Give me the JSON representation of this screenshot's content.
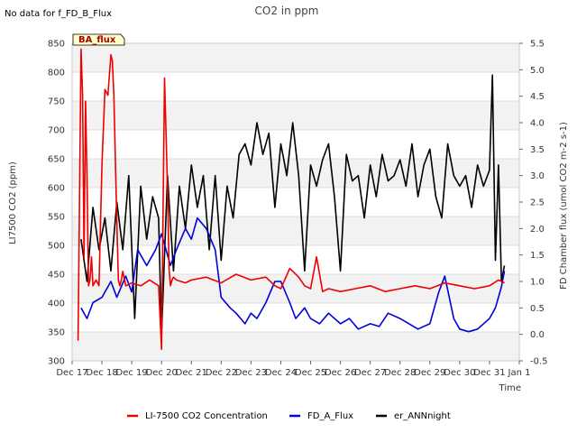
{
  "note": "No data for f_FD_B_Flux",
  "badge": "BA_flux",
  "chart_data": {
    "type": "line",
    "title": "CO2 in ppm",
    "xlabel": "Time",
    "ylabel": "LI7500 CO2 (ppm)",
    "y2label": "FD Chamber flux (umol CO2 m-2 s-1)",
    "ylim": [
      300,
      850
    ],
    "y2lim": [
      -0.5,
      5.5
    ],
    "xlim": [
      0,
      15
    ],
    "x_tick_labels": [
      "Dec 17",
      "Dec 18",
      "Dec 19",
      "Dec 20",
      "Dec 21",
      "Dec 22",
      "Dec 23",
      "Dec 24",
      "Dec 25",
      "Dec 26",
      "Dec 27",
      "Dec 28",
      "Dec 29",
      "Dec 30",
      "Dec 31",
      "Jan 1"
    ],
    "y_tick_labels": [
      "300",
      "350",
      "400",
      "450",
      "500",
      "550",
      "600",
      "650",
      "700",
      "750",
      "800",
      "850"
    ],
    "y2_tick_labels": [
      "-0.5",
      "0.0",
      "0.5",
      "1.0",
      "1.5",
      "2.0",
      "2.5",
      "3.0",
      "3.5",
      "4.0",
      "4.5",
      "5.0",
      "5.5"
    ],
    "grid": true,
    "legend_position": "bottom",
    "series": [
      {
        "name": "LI-7500 CO2 Concentration",
        "axis": "left",
        "color": "#ee0000",
        "x": [
          0.2,
          0.3,
          0.35,
          0.4,
          0.45,
          0.5,
          0.55,
          0.6,
          0.65,
          0.7,
          0.8,
          0.9,
          1.0,
          1.1,
          1.2,
          1.3,
          1.35,
          1.4,
          1.5,
          1.55,
          1.6,
          1.65,
          1.7,
          1.8,
          2.0,
          2.3,
          2.6,
          2.9,
          3.0,
          3.1,
          3.2,
          3.25,
          3.3,
          3.35,
          3.4,
          3.5,
          3.8,
          4.0,
          4.5,
          5.0,
          5.5,
          6.0,
          6.5,
          6.8,
          7.0,
          7.3,
          7.6,
          7.8,
          8.0,
          8.2,
          8.4,
          8.6,
          9.0,
          9.5,
          10.0,
          10.5,
          11.0,
          11.5,
          12.0,
          12.5,
          13.0,
          13.5,
          14.0,
          14.3,
          14.5
        ],
        "y": [
          335,
          840,
          760,
          480,
          750,
          620,
          430,
          440,
          480,
          430,
          440,
          430,
          640,
          770,
          760,
          830,
          820,
          760,
          540,
          440,
          430,
          440,
          455,
          430,
          435,
          430,
          440,
          430,
          320,
          790,
          600,
          460,
          430,
          440,
          445,
          440,
          435,
          440,
          445,
          435,
          450,
          440,
          445,
          430,
          425,
          460,
          445,
          430,
          425,
          480,
          420,
          425,
          420,
          425,
          430,
          420,
          425,
          430,
          425,
          435,
          430,
          425,
          430,
          440,
          435
        ]
      },
      {
        "name": "FD_A_Flux",
        "axis": "right",
        "color": "#0000dd",
        "x": [
          0.3,
          0.5,
          0.7,
          1.0,
          1.3,
          1.5,
          1.8,
          2.0,
          2.2,
          2.5,
          2.8,
          3.0,
          3.3,
          3.5,
          3.8,
          4.0,
          4.2,
          4.5,
          4.8,
          5.0,
          5.3,
          5.5,
          5.8,
          6.0,
          6.2,
          6.5,
          6.8,
          7.0,
          7.3,
          7.5,
          7.8,
          8.0,
          8.3,
          8.6,
          9.0,
          9.3,
          9.6,
          10.0,
          10.3,
          10.6,
          11.0,
          11.3,
          11.6,
          12.0,
          12.3,
          12.5,
          12.8,
          13.0,
          13.3,
          13.6,
          14.0,
          14.2,
          14.4,
          14.5
        ],
        "y": [
          0.5,
          0.3,
          0.6,
          0.7,
          1.0,
          0.7,
          1.1,
          0.8,
          1.6,
          1.3,
          1.6,
          1.9,
          1.3,
          1.6,
          2.0,
          1.8,
          2.2,
          2.0,
          1.6,
          0.7,
          0.5,
          0.4,
          0.2,
          0.4,
          0.3,
          0.6,
          1.0,
          1.0,
          0.6,
          0.3,
          0.5,
          0.3,
          0.2,
          0.4,
          0.2,
          0.3,
          0.1,
          0.2,
          0.15,
          0.4,
          0.3,
          0.2,
          0.1,
          0.2,
          0.8,
          1.1,
          0.3,
          0.1,
          0.05,
          0.1,
          0.3,
          0.5,
          0.9,
          1.2
        ]
      },
      {
        "name": "er_ANNnight",
        "axis": "right",
        "color": "#000000",
        "x": [
          0.3,
          0.5,
          0.7,
          0.9,
          1.1,
          1.3,
          1.5,
          1.7,
          1.9,
          2.1,
          2.3,
          2.5,
          2.7,
          2.9,
          3.0,
          3.2,
          3.4,
          3.6,
          3.8,
          4.0,
          4.2,
          4.4,
          4.6,
          4.8,
          5.0,
          5.2,
          5.4,
          5.6,
          5.8,
          6.0,
          6.2,
          6.4,
          6.6,
          6.8,
          7.0,
          7.2,
          7.4,
          7.6,
          7.8,
          8.0,
          8.2,
          8.4,
          8.6,
          8.8,
          9.0,
          9.2,
          9.4,
          9.6,
          9.8,
          10.0,
          10.2,
          10.4,
          10.6,
          10.8,
          11.0,
          11.2,
          11.4,
          11.6,
          11.8,
          12.0,
          12.2,
          12.4,
          12.6,
          12.8,
          13.0,
          13.2,
          13.4,
          13.6,
          13.8,
          14.0,
          14.1,
          14.2,
          14.3,
          14.4,
          14.5
        ],
        "y": [
          1.8,
          1.0,
          2.4,
          1.6,
          2.2,
          1.2,
          2.5,
          1.6,
          3.0,
          0.3,
          2.8,
          1.8,
          2.6,
          2.2,
          0.0,
          3.0,
          1.2,
          2.8,
          2.0,
          3.2,
          2.4,
          3.0,
          1.6,
          3.0,
          1.4,
          2.8,
          2.2,
          3.4,
          3.6,
          3.2,
          4.0,
          3.4,
          3.8,
          2.4,
          3.6,
          3.0,
          4.0,
          3.0,
          1.2,
          3.2,
          2.8,
          3.3,
          3.6,
          2.6,
          1.2,
          3.4,
          2.9,
          3.0,
          2.2,
          3.2,
          2.6,
          3.4,
          2.9,
          3.0,
          3.3,
          2.8,
          3.6,
          2.6,
          3.2,
          3.5,
          2.6,
          2.2,
          3.6,
          3.0,
          2.8,
          3.0,
          2.4,
          3.2,
          2.8,
          3.1,
          4.9,
          1.4,
          3.2,
          1.0,
          1.3
        ]
      }
    ]
  }
}
